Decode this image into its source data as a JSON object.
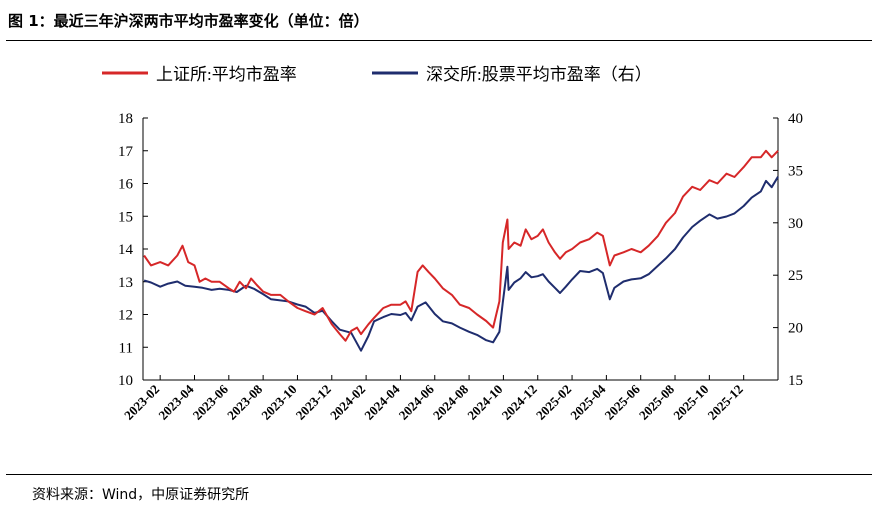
{
  "figure": {
    "title": "图 1：最近三年沪深两市平均市盈率变化（单位：倍）",
    "source": "资料来源：Wind，中原证券研究所"
  },
  "chart_data": {
    "type": "line",
    "title": "图 1：最近三年沪深两市平均市盈率变化（单位：倍）",
    "xlabel": "",
    "ylabel": "",
    "x_start": "2023-01",
    "x_end": "2026-02",
    "x_tick_labels": [
      "2023-02",
      "2023-04",
      "2023-06",
      "2023-08",
      "2023-10",
      "2023-12",
      "2024-02",
      "2024-04",
      "2024-06",
      "2024-08",
      "2024-10",
      "2024-12",
      "2025-02",
      "2025-04",
      "2025-06",
      "2025-08",
      "2025-10",
      "2025-12"
    ],
    "ylim_left": [
      10,
      18
    ],
    "yticks_left": [
      10,
      11,
      12,
      13,
      14,
      15,
      16,
      17,
      18
    ],
    "ylim_right": [
      15,
      40
    ],
    "yticks_right": [
      15,
      20,
      25,
      30,
      35,
      40
    ],
    "legend_position": "top",
    "grid": false,
    "series": [
      {
        "name": "上证所:平均市盈率",
        "axis": "left",
        "color": "#d62728",
        "points": [
          [
            "2023-01-03",
            13.8
          ],
          [
            "2023-01-15",
            13.5
          ],
          [
            "2023-02-01",
            13.6
          ],
          [
            "2023-02-15",
            13.5
          ],
          [
            "2023-03-01",
            13.8
          ],
          [
            "2023-03-10",
            14.1
          ],
          [
            "2023-03-20",
            13.6
          ],
          [
            "2023-04-01",
            13.5
          ],
          [
            "2023-04-10",
            13.0
          ],
          [
            "2023-04-20",
            13.1
          ],
          [
            "2023-05-01",
            13.0
          ],
          [
            "2023-05-15",
            13.0
          ],
          [
            "2023-06-01",
            12.8
          ],
          [
            "2023-06-10",
            12.7
          ],
          [
            "2023-06-20",
            13.0
          ],
          [
            "2023-07-01",
            12.8
          ],
          [
            "2023-07-10",
            13.1
          ],
          [
            "2023-07-20",
            12.9
          ],
          [
            "2023-08-01",
            12.7
          ],
          [
            "2023-08-15",
            12.6
          ],
          [
            "2023-09-01",
            12.6
          ],
          [
            "2023-09-15",
            12.4
          ],
          [
            "2023-10-01",
            12.2
          ],
          [
            "2023-10-15",
            12.1
          ],
          [
            "2023-11-01",
            12.0
          ],
          [
            "2023-11-15",
            12.2
          ],
          [
            "2023-12-01",
            11.7
          ],
          [
            "2023-12-15",
            11.4
          ],
          [
            "2023-12-25",
            11.2
          ],
          [
            "2024-01-05",
            11.5
          ],
          [
            "2024-01-15",
            11.6
          ],
          [
            "2024-01-22",
            11.4
          ],
          [
            "2024-02-05",
            11.7
          ],
          [
            "2024-02-15",
            11.9
          ],
          [
            "2024-03-01",
            12.2
          ],
          [
            "2024-03-15",
            12.3
          ],
          [
            "2024-04-01",
            12.3
          ],
          [
            "2024-04-10",
            12.4
          ],
          [
            "2024-04-20",
            12.1
          ],
          [
            "2024-05-01",
            13.3
          ],
          [
            "2024-05-10",
            13.5
          ],
          [
            "2024-05-20",
            13.3
          ],
          [
            "2024-06-01",
            13.1
          ],
          [
            "2024-06-15",
            12.8
          ],
          [
            "2024-07-01",
            12.6
          ],
          [
            "2024-07-15",
            12.3
          ],
          [
            "2024-08-01",
            12.2
          ],
          [
            "2024-08-15",
            12.0
          ],
          [
            "2024-09-01",
            11.8
          ],
          [
            "2024-09-13",
            11.6
          ],
          [
            "2024-09-24",
            12.4
          ],
          [
            "2024-09-30",
            14.2
          ],
          [
            "2024-10-08",
            14.9
          ],
          [
            "2024-10-10",
            14.0
          ],
          [
            "2024-10-20",
            14.2
          ],
          [
            "2024-11-01",
            14.1
          ],
          [
            "2024-11-10",
            14.6
          ],
          [
            "2024-11-20",
            14.3
          ],
          [
            "2024-12-01",
            14.4
          ],
          [
            "2024-12-10",
            14.6
          ],
          [
            "2024-12-20",
            14.2
          ],
          [
            "2025-01-01",
            13.9
          ],
          [
            "2025-01-10",
            13.7
          ],
          [
            "2025-01-20",
            13.9
          ],
          [
            "2025-02-01",
            14.0
          ],
          [
            "2025-02-15",
            14.2
          ],
          [
            "2025-03-01",
            14.3
          ],
          [
            "2025-03-15",
            14.5
          ],
          [
            "2025-03-25",
            14.4
          ],
          [
            "2025-04-07",
            13.5
          ],
          [
            "2025-04-15",
            13.8
          ],
          [
            "2025-05-01",
            13.9
          ],
          [
            "2025-05-15",
            14.0
          ],
          [
            "2025-06-01",
            13.9
          ],
          [
            "2025-06-15",
            14.1
          ],
          [
            "2025-07-01",
            14.4
          ],
          [
            "2025-07-15",
            14.8
          ],
          [
            "2025-08-01",
            15.1
          ],
          [
            "2025-08-15",
            15.6
          ],
          [
            "2025-09-01",
            15.9
          ],
          [
            "2025-09-15",
            15.8
          ],
          [
            "2025-10-01",
            16.1
          ],
          [
            "2025-10-15",
            16.0
          ],
          [
            "2025-11-01",
            16.3
          ],
          [
            "2025-11-15",
            16.2
          ],
          [
            "2025-12-01",
            16.5
          ],
          [
            "2025-12-15",
            16.8
          ],
          [
            "2026-01-01",
            16.8
          ],
          [
            "2026-01-10",
            17.0
          ],
          [
            "2026-01-20",
            16.8
          ],
          [
            "2026-02-01",
            17.0
          ]
        ]
      },
      {
        "name": "深交所:股票平均市盈率（右）",
        "axis": "right",
        "color": "#1f2d6e",
        "points": [
          [
            "2023-01-03",
            24.5
          ],
          [
            "2023-01-15",
            24.3
          ],
          [
            "2023-02-01",
            23.9
          ],
          [
            "2023-02-15",
            24.2
          ],
          [
            "2023-03-01",
            24.4
          ],
          [
            "2023-03-15",
            24.0
          ],
          [
            "2023-04-01",
            23.9
          ],
          [
            "2023-04-15",
            23.8
          ],
          [
            "2023-05-01",
            23.6
          ],
          [
            "2023-05-15",
            23.7
          ],
          [
            "2023-06-01",
            23.6
          ],
          [
            "2023-06-15",
            23.4
          ],
          [
            "2023-07-01",
            24.0
          ],
          [
            "2023-07-15",
            23.7
          ],
          [
            "2023-08-01",
            23.2
          ],
          [
            "2023-08-15",
            22.7
          ],
          [
            "2023-09-01",
            22.6
          ],
          [
            "2023-09-15",
            22.5
          ],
          [
            "2023-10-01",
            22.2
          ],
          [
            "2023-10-15",
            22.0
          ],
          [
            "2023-11-01",
            21.4
          ],
          [
            "2023-11-15",
            21.6
          ],
          [
            "2023-12-01",
            20.6
          ],
          [
            "2023-12-15",
            19.8
          ],
          [
            "2024-01-05",
            19.5
          ],
          [
            "2024-01-22",
            17.8
          ],
          [
            "2024-02-05",
            19.2
          ],
          [
            "2024-02-15",
            20.6
          ],
          [
            "2024-03-01",
            21.0
          ],
          [
            "2024-03-15",
            21.3
          ],
          [
            "2024-04-01",
            21.2
          ],
          [
            "2024-04-10",
            21.4
          ],
          [
            "2024-04-20",
            20.7
          ],
          [
            "2024-05-01",
            22.0
          ],
          [
            "2024-05-15",
            22.4
          ],
          [
            "2024-06-01",
            21.3
          ],
          [
            "2024-06-15",
            20.6
          ],
          [
            "2024-07-01",
            20.4
          ],
          [
            "2024-07-15",
            20.0
          ],
          [
            "2024-08-01",
            19.6
          ],
          [
            "2024-08-15",
            19.3
          ],
          [
            "2024-09-01",
            18.8
          ],
          [
            "2024-09-13",
            18.6
          ],
          [
            "2024-09-24",
            19.6
          ],
          [
            "2024-09-30",
            22.4
          ],
          [
            "2024-10-08",
            25.8
          ],
          [
            "2024-10-10",
            23.6
          ],
          [
            "2024-10-20",
            24.3
          ],
          [
            "2024-11-01",
            24.7
          ],
          [
            "2024-11-10",
            25.3
          ],
          [
            "2024-11-20",
            24.8
          ],
          [
            "2024-12-01",
            24.9
          ],
          [
            "2024-12-10",
            25.1
          ],
          [
            "2024-12-20",
            24.4
          ],
          [
            "2025-01-01",
            23.8
          ],
          [
            "2025-01-10",
            23.3
          ],
          [
            "2025-01-20",
            23.9
          ],
          [
            "2025-02-01",
            24.6
          ],
          [
            "2025-02-15",
            25.4
          ],
          [
            "2025-03-01",
            25.3
          ],
          [
            "2025-03-15",
            25.6
          ],
          [
            "2025-03-25",
            25.2
          ],
          [
            "2025-04-07",
            22.7
          ],
          [
            "2025-04-15",
            23.8
          ],
          [
            "2025-05-01",
            24.4
          ],
          [
            "2025-05-15",
            24.6
          ],
          [
            "2025-06-01",
            24.7
          ],
          [
            "2025-06-15",
            25.1
          ],
          [
            "2025-07-01",
            25.9
          ],
          [
            "2025-07-15",
            26.6
          ],
          [
            "2025-08-01",
            27.5
          ],
          [
            "2025-08-15",
            28.6
          ],
          [
            "2025-09-01",
            29.6
          ],
          [
            "2025-09-15",
            30.2
          ],
          [
            "2025-10-01",
            30.8
          ],
          [
            "2025-10-15",
            30.4
          ],
          [
            "2025-11-01",
            30.6
          ],
          [
            "2025-11-15",
            30.9
          ],
          [
            "2025-12-01",
            31.6
          ],
          [
            "2025-12-15",
            32.4
          ],
          [
            "2026-01-01",
            33.0
          ],
          [
            "2026-01-10",
            34.0
          ],
          [
            "2026-01-20",
            33.4
          ],
          [
            "2026-02-01",
            34.4
          ]
        ]
      }
    ]
  }
}
